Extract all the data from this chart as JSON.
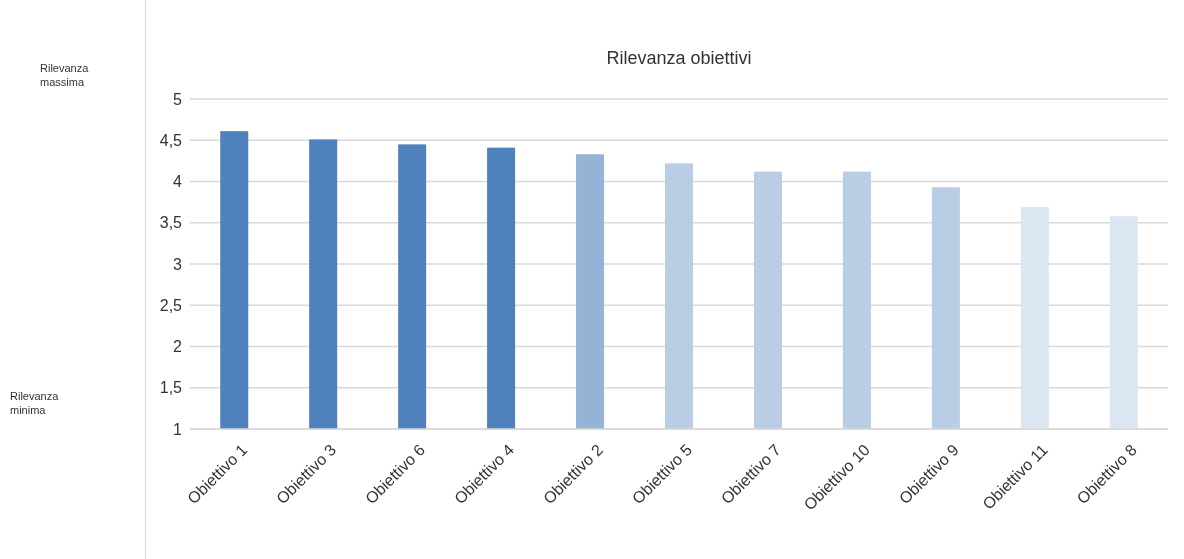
{
  "chart_data": {
    "type": "bar",
    "title": "Rilevanza obiettivi",
    "categories": [
      "Obiettivo 1",
      "Obiettivo 3",
      "Obiettivo 6",
      "Obiettivo 4",
      "Obiettivo 2",
      "Obiettivo 5",
      "Obiettivo 7",
      "Obiettivo 10",
      "Obiettivo 9",
      "Obiettivo 11",
      "Obiettivo 8"
    ],
    "values": [
      4.61,
      4.51,
      4.45,
      4.41,
      4.33,
      4.22,
      4.12,
      4.12,
      3.93,
      3.69,
      3.58
    ],
    "colors": [
      "#4f81bd",
      "#4f81bd",
      "#4f81bd",
      "#4f81bd",
      "#95b3d7",
      "#b9cde5",
      "#b9cde5",
      "#b9cde5",
      "#b9cde5",
      "#dce6f2",
      "#dce6f2"
    ],
    "ylim": [
      1,
      5
    ],
    "yticks": [
      {
        "value": 1,
        "label": "1"
      },
      {
        "value": 1.5,
        "label": "1,5"
      },
      {
        "value": 2,
        "label": "2"
      },
      {
        "value": 2.5,
        "label": "2,5"
      },
      {
        "value": 3,
        "label": "3"
      },
      {
        "value": 3.5,
        "label": "3,5"
      },
      {
        "value": 4,
        "label": "4"
      },
      {
        "value": 4.5,
        "label": "4,5"
      },
      {
        "value": 5,
        "label": "5"
      }
    ],
    "grid": "y",
    "annotations": [
      "Rilevanza massima",
      "Rilevanza minima"
    ]
  }
}
